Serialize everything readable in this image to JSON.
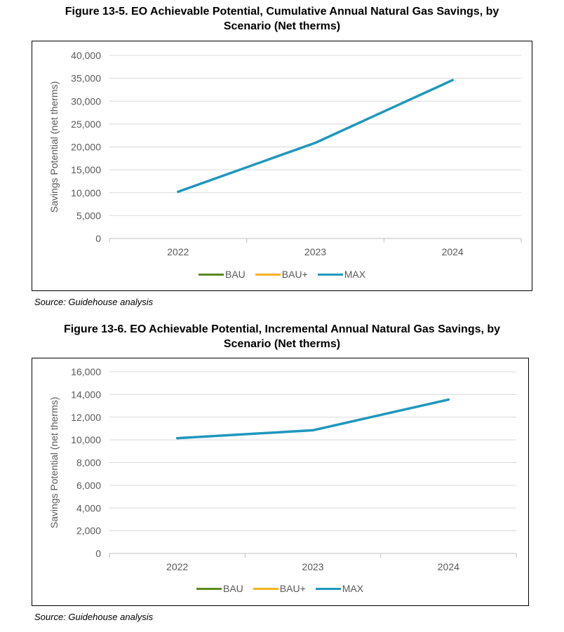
{
  "figures": [
    {
      "title_line1": "Figure 13-5. EO Achievable Potential, Cumulative Annual Natural Gas Savings, by",
      "title_line2": "Scenario (Net therms)",
      "source": "Source: Guidehouse analysis"
    },
    {
      "title_line1": "Figure 13-6. EO Achievable Potential, Incremental Annual Natural Gas Savings, by",
      "title_line2": "Scenario (Net therms)",
      "source": "Source: Guidehouse analysis"
    }
  ],
  "chart_data": [
    {
      "type": "line",
      "title": "Figure 13-5. EO Achievable Potential, Cumulative Annual Natural Gas Savings, by Scenario (Net therms)",
      "categories": [
        "2022",
        "2023",
        "2024"
      ],
      "ylabel": "Savings Potential  (net therms)",
      "xlabel": "",
      "ylim": [
        0,
        40000
      ],
      "yticks": [
        0,
        5000,
        10000,
        15000,
        20000,
        25000,
        30000,
        35000,
        40000
      ],
      "ytick_labels": [
        "0",
        "5,000",
        "10,000",
        "15,000",
        "20,000",
        "25,000",
        "30,000",
        "35,000",
        "40,000"
      ],
      "grid": true,
      "legend_position": "bottom",
      "series": [
        {
          "name": "BAU",
          "color": "#5b8a1e",
          "values": [
            null,
            null,
            null
          ]
        },
        {
          "name": "BAU+",
          "color": "#f5b21e",
          "values": [
            null,
            null,
            null
          ]
        },
        {
          "name": "MAX",
          "color": "#1f97be",
          "values": [
            10200,
            20900,
            34600
          ]
        }
      ]
    },
    {
      "type": "line",
      "title": "Figure 13-6. EO Achievable Potential, Incremental Annual Natural Gas Savings, by Scenario (Net therms)",
      "categories": [
        "2022",
        "2023",
        "2024"
      ],
      "ylabel": "Savings Potential  (net therms)",
      "xlabel": "",
      "ylim": [
        0,
        16000
      ],
      "yticks": [
        0,
        2000,
        4000,
        6000,
        8000,
        10000,
        12000,
        14000,
        16000
      ],
      "ytick_labels": [
        "0",
        "2,000",
        "4,000",
        "6,000",
        "8,000",
        "10,000",
        "12,000",
        "14,000",
        "16,000"
      ],
      "grid": true,
      "legend_position": "bottom",
      "series": [
        {
          "name": "BAU",
          "color": "#5b8a1e",
          "values": [
            null,
            null,
            null
          ]
        },
        {
          "name": "BAU+",
          "color": "#f5b21e",
          "values": [
            null,
            null,
            null
          ]
        },
        {
          "name": "MAX",
          "color": "#1f97be",
          "values": [
            10150,
            10850,
            13550
          ]
        }
      ]
    }
  ]
}
